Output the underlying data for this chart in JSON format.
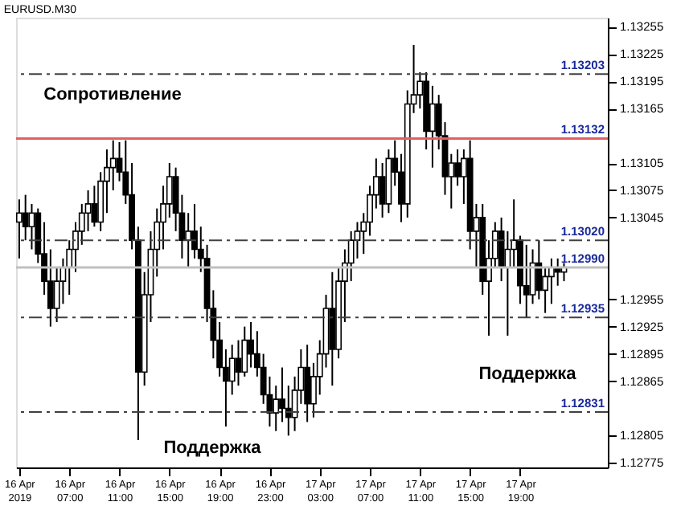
{
  "chart_data": {
    "type": "candlestick",
    "title": "EURUSD.M30",
    "x": [
      "2019-04-16T03:00",
      "2019-04-16T03:30",
      "2019-04-16T04:00",
      "2019-04-16T04:30",
      "2019-04-16T05:00",
      "2019-04-16T05:30",
      "2019-04-16T06:00",
      "2019-04-16T06:30",
      "2019-04-16T07:00",
      "2019-04-16T07:30",
      "2019-04-16T08:00",
      "2019-04-16T08:30",
      "2019-04-16T09:00",
      "2019-04-16T09:30",
      "2019-04-16T10:00",
      "2019-04-16T10:30",
      "2019-04-16T11:00",
      "2019-04-16T11:30",
      "2019-04-16T12:00",
      "2019-04-16T12:30",
      "2019-04-16T13:00",
      "2019-04-16T13:30",
      "2019-04-16T14:00",
      "2019-04-16T14:30",
      "2019-04-16T15:00",
      "2019-04-16T15:30",
      "2019-04-16T16:00",
      "2019-04-16T16:30",
      "2019-04-16T17:00",
      "2019-04-16T17:30",
      "2019-04-16T18:00",
      "2019-04-16T18:30",
      "2019-04-16T19:00",
      "2019-04-16T19:30",
      "2019-04-16T20:00",
      "2019-04-16T20:30",
      "2019-04-16T21:00",
      "2019-04-16T21:30",
      "2019-04-16T22:00",
      "2019-04-16T22:30",
      "2019-04-16T23:00",
      "2019-04-16T23:30",
      "2019-04-17T00:00",
      "2019-04-17T00:30",
      "2019-04-17T01:00",
      "2019-04-17T01:30",
      "2019-04-17T02:00",
      "2019-04-17T02:30",
      "2019-04-17T03:00",
      "2019-04-17T03:30",
      "2019-04-17T04:00",
      "2019-04-17T04:30",
      "2019-04-17T05:00",
      "2019-04-17T05:30",
      "2019-04-17T06:00",
      "2019-04-17T06:30",
      "2019-04-17T07:00",
      "2019-04-17T07:30",
      "2019-04-17T08:00",
      "2019-04-17T08:30",
      "2019-04-17T09:00",
      "2019-04-17T09:30",
      "2019-04-17T10:00",
      "2019-04-17T10:30",
      "2019-04-17T11:00",
      "2019-04-17T11:30",
      "2019-04-17T12:00",
      "2019-04-17T12:30",
      "2019-04-17T13:00",
      "2019-04-17T13:30",
      "2019-04-17T14:00",
      "2019-04-17T14:30",
      "2019-04-17T15:00",
      "2019-04-17T15:30",
      "2019-04-17T16:00",
      "2019-04-17T16:30",
      "2019-04-17T17:00",
      "2019-04-17T17:30",
      "2019-04-17T18:00",
      "2019-04-17T18:30",
      "2019-04-17T19:00",
      "2019-04-17T19:30",
      "2019-04-17T20:00",
      "2019-04-17T20:30",
      "2019-04-17T21:00",
      "2019-04-17T21:30",
      "2019-04-17T22:00",
      "2019-04-17T22:30"
    ],
    "ohlc": [
      [
        1.1304,
        1.13065,
        1.13,
        1.1305
      ],
      [
        1.1305,
        1.1307,
        1.1302,
        1.13035
      ],
      [
        1.13035,
        1.1306,
        1.1301,
        1.1305
      ],
      [
        1.1305,
        1.13055,
        1.12995,
        1.13005
      ],
      [
        1.13005,
        1.1304,
        1.1296,
        1.12975
      ],
      [
        1.12975,
        1.1301,
        1.12925,
        1.12945
      ],
      [
        1.12945,
        1.1299,
        1.1293,
        1.12975
      ],
      [
        1.12975,
        1.13,
        1.1295,
        1.1299
      ],
      [
        1.1299,
        1.1302,
        1.1296,
        1.1301
      ],
      [
        1.1301,
        1.1304,
        1.12985,
        1.1303
      ],
      [
        1.1303,
        1.1306,
        1.13015,
        1.1305
      ],
      [
        1.1305,
        1.13075,
        1.1303,
        1.1306
      ],
      [
        1.1306,
        1.1308,
        1.13035,
        1.1304
      ],
      [
        1.1304,
        1.13095,
        1.1303,
        1.13085
      ],
      [
        1.13085,
        1.1312,
        1.1305,
        1.131
      ],
      [
        1.131,
        1.1313,
        1.13075,
        1.1311
      ],
      [
        1.1311,
        1.13128,
        1.13085,
        1.13095
      ],
      [
        1.13095,
        1.1313,
        1.1306,
        1.1307
      ],
      [
        1.1307,
        1.13105,
        1.1301,
        1.1302
      ],
      [
        1.1302,
        1.13035,
        1.128,
        1.12875
      ],
      [
        1.12875,
        1.12985,
        1.1286,
        1.1296
      ],
      [
        1.1296,
        1.1303,
        1.1293,
        1.1301
      ],
      [
        1.1301,
        1.13055,
        1.1298,
        1.1304
      ],
      [
        1.1304,
        1.1308,
        1.1301,
        1.1306
      ],
      [
        1.1306,
        1.13105,
        1.13045,
        1.1309
      ],
      [
        1.1309,
        1.131,
        1.1303,
        1.1305
      ],
      [
        1.1305,
        1.1307,
        1.13,
        1.1302
      ],
      [
        1.1302,
        1.1305,
        1.1299,
        1.1303
      ],
      [
        1.1303,
        1.1306,
        1.13,
        1.1301
      ],
      [
        1.1301,
        1.13035,
        1.12985,
        1.13
      ],
      [
        1.13,
        1.13015,
        1.1293,
        1.12945
      ],
      [
        1.12945,
        1.12965,
        1.1289,
        1.1291
      ],
      [
        1.1291,
        1.1293,
        1.1287,
        1.1288
      ],
      [
        1.1288,
        1.129,
        1.12815,
        1.12865
      ],
      [
        1.12865,
        1.12905,
        1.1285,
        1.1289
      ],
      [
        1.1289,
        1.1291,
        1.1286,
        1.12875
      ],
      [
        1.12875,
        1.12925,
        1.1287,
        1.1291
      ],
      [
        1.1291,
        1.1293,
        1.1288,
        1.12895
      ],
      [
        1.12895,
        1.1292,
        1.1287,
        1.1288
      ],
      [
        1.1288,
        1.12895,
        1.1284,
        1.1285
      ],
      [
        1.1285,
        1.1287,
        1.12815,
        1.1283
      ],
      [
        1.1283,
        1.1286,
        1.1281,
        1.12845
      ],
      [
        1.12845,
        1.1288,
        1.1282,
        1.12835
      ],
      [
        1.12835,
        1.1286,
        1.12805,
        1.12825
      ],
      [
        1.12825,
        1.1287,
        1.1281,
        1.12855
      ],
      [
        1.12855,
        1.129,
        1.1284,
        1.1288
      ],
      [
        1.1288,
        1.12905,
        1.1282,
        1.1284
      ],
      [
        1.1284,
        1.12885,
        1.12825,
        1.1287
      ],
      [
        1.1287,
        1.1291,
        1.1285,
        1.12895
      ],
      [
        1.12895,
        1.1296,
        1.1288,
        1.12945
      ],
      [
        1.12945,
        1.12985,
        1.1286,
        1.129
      ],
      [
        1.129,
        1.1299,
        1.1289,
        1.12975
      ],
      [
        1.12975,
        1.1301,
        1.1293,
        1.12995
      ],
      [
        1.12995,
        1.1303,
        1.12975,
        1.1302
      ],
      [
        1.1302,
        1.1304,
        1.13,
        1.1303
      ],
      [
        1.1303,
        1.1305,
        1.13005,
        1.1304
      ],
      [
        1.1304,
        1.1308,
        1.13025,
        1.1307
      ],
      [
        1.1307,
        1.1311,
        1.13055,
        1.1309
      ],
      [
        1.1309,
        1.13105,
        1.13045,
        1.1306
      ],
      [
        1.1306,
        1.1312,
        1.1305,
        1.1311
      ],
      [
        1.1311,
        1.1313,
        1.1308,
        1.13095
      ],
      [
        1.13095,
        1.13115,
        1.1304,
        1.1306
      ],
      [
        1.1306,
        1.13185,
        1.13045,
        1.1317
      ],
      [
        1.1317,
        1.13235,
        1.1316,
        1.1318
      ],
      [
        1.1318,
        1.13205,
        1.13165,
        1.13195
      ],
      [
        1.13195,
        1.13205,
        1.1312,
        1.1314
      ],
      [
        1.1314,
        1.1319,
        1.131,
        1.1317
      ],
      [
        1.1317,
        1.1318,
        1.1312,
        1.13135
      ],
      [
        1.13135,
        1.1315,
        1.1307,
        1.1309
      ],
      [
        1.1309,
        1.13115,
        1.13055,
        1.13105
      ],
      [
        1.13105,
        1.1312,
        1.1308,
        1.1309
      ],
      [
        1.1309,
        1.1312,
        1.1306,
        1.1311
      ],
      [
        1.1311,
        1.1313,
        1.1301,
        1.1303
      ],
      [
        1.1303,
        1.1306,
        1.1299,
        1.13045
      ],
      [
        1.13045,
        1.1306,
        1.1296,
        1.12975
      ],
      [
        1.12975,
        1.1302,
        1.12915,
        1.13
      ],
      [
        1.13,
        1.1304,
        1.1299,
        1.1303
      ],
      [
        1.1303,
        1.13045,
        1.12975,
        1.1299
      ],
      [
        1.1299,
        1.1303,
        1.12915,
        1.1301
      ],
      [
        1.1301,
        1.13065,
        1.1299,
        1.1302
      ],
      [
        1.1302,
        1.13025,
        1.1295,
        1.1297
      ],
      [
        1.1297,
        1.13015,
        1.12935,
        1.1296
      ],
      [
        1.1296,
        1.1301,
        1.1295,
        1.12995
      ],
      [
        1.12995,
        1.1302,
        1.12955,
        1.12965
      ],
      [
        1.12965,
        1.1299,
        1.1294,
        1.1298
      ],
      [
        1.1298,
        1.13,
        1.1295,
        1.1299
      ],
      [
        1.1299,
        1.13,
        1.1297,
        1.12985
      ],
      [
        1.12985,
        1.12995,
        1.12975,
        1.1299
      ]
    ],
    "xlim": [
      "2019-04-16T02:45",
      "2019-04-18T02:00"
    ],
    "xticks": [
      {
        "value": "2019-04-16T03:00",
        "label": "16 Apr 2019"
      },
      {
        "value": "2019-04-16T07:00",
        "label": "16 Apr 07:00"
      },
      {
        "value": "2019-04-16T11:00",
        "label": "16 Apr 11:00"
      },
      {
        "value": "2019-04-16T15:00",
        "label": "16 Apr 15:00"
      },
      {
        "value": "2019-04-16T19:00",
        "label": "16 Apr 19:00"
      },
      {
        "value": "2019-04-16T23:00",
        "label": "16 Apr 23:00"
      },
      {
        "value": "2019-04-17T03:00",
        "label": "17 Apr 03:00"
      },
      {
        "value": "2019-04-17T07:00",
        "label": "17 Apr 07:00"
      },
      {
        "value": "2019-04-17T11:00",
        "label": "17 Apr 11:00"
      },
      {
        "value": "2019-04-17T15:00",
        "label": "17 Apr 15:00"
      },
      {
        "value": "2019-04-17T19:00",
        "label": "17 Apr 19:00"
      }
    ],
    "ylim": [
      1.1277,
      1.13265
    ],
    "yticks": [
      1.13255,
      1.13225,
      1.13195,
      1.13165,
      1.13105,
      1.13075,
      1.13045,
      1.12955,
      1.12925,
      1.12895,
      1.12865,
      1.12805,
      1.12775
    ],
    "ref_lines": [
      {
        "axis": "y",
        "value": 1.13203,
        "label": "1.13203",
        "color": "#404040",
        "line_style": "dashed"
      },
      {
        "axis": "y",
        "value": 1.13132,
        "label": "1.13132",
        "color": "#e06060",
        "line_style": "solid"
      },
      {
        "axis": "y",
        "value": 1.1302,
        "label": "1.13020",
        "color": "#404040",
        "line_style": "dashed"
      },
      {
        "axis": "y",
        "value": 1.1299,
        "label": "1.12990",
        "color": "#c0c0c0",
        "line_style": "solid"
      },
      {
        "axis": "y",
        "value": 1.12935,
        "label": "1.12935",
        "color": "#404040",
        "line_style": "dashed"
      },
      {
        "axis": "y",
        "value": 1.12831,
        "label": "1.12831",
        "color": "#404040",
        "line_style": "dashed"
      }
    ],
    "annotations": [
      "Сопротивление",
      "Поддержка",
      "Поддержка"
    ],
    "grid": false,
    "legend": false
  }
}
